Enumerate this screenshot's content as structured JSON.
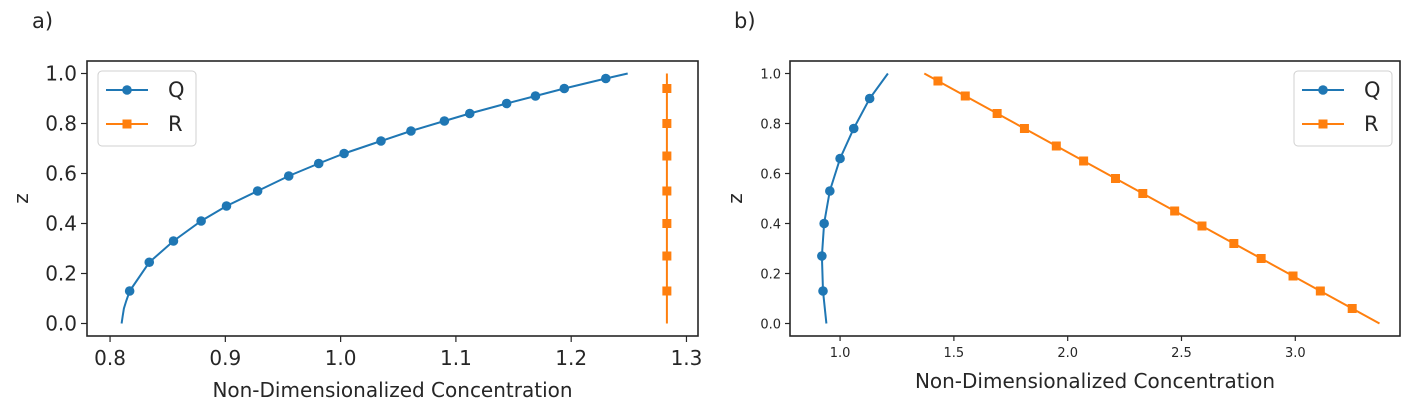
{
  "chart_data": [
    {
      "panel_label": "a)",
      "type": "line",
      "xlabel": "Non-Dimensionalized Concentration",
      "ylabel": "z",
      "xlim": [
        0.78,
        1.31
      ],
      "ylim": [
        -0.05,
        1.05
      ],
      "xticks": [
        0.8,
        0.9,
        1.0,
        1.1,
        1.2,
        1.3
      ],
      "xtick_labels": [
        "0.8",
        "0.9",
        "1.0",
        "1.1",
        "1.2",
        "1.3"
      ],
      "yticks": [
        0.0,
        0.2,
        0.4,
        0.6,
        0.8,
        1.0
      ],
      "ytick_labels": [
        "0.0",
        "0.2",
        "0.4",
        "0.6",
        "0.8",
        "1.0"
      ],
      "legend": "top-left",
      "series": [
        {
          "name": "Q",
          "color": "#1f77b4",
          "marker": "circle",
          "line": [
            {
              "x": 0.81,
              "y": 0.0
            },
            {
              "x": 0.811,
              "y": 0.03
            },
            {
              "x": 0.812,
              "y": 0.06
            },
            {
              "x": 0.814,
              "y": 0.09
            },
            {
              "x": 0.817,
              "y": 0.13
            },
            {
              "x": 0.834,
              "y": 0.245
            },
            {
              "x": 0.855,
              "y": 0.33
            },
            {
              "x": 0.879,
              "y": 0.41
            },
            {
              "x": 0.901,
              "y": 0.47
            },
            {
              "x": 0.928,
              "y": 0.53
            },
            {
              "x": 0.955,
              "y": 0.59
            },
            {
              "x": 0.981,
              "y": 0.64
            },
            {
              "x": 1.003,
              "y": 0.68
            },
            {
              "x": 1.035,
              "y": 0.73
            },
            {
              "x": 1.061,
              "y": 0.77
            },
            {
              "x": 1.09,
              "y": 0.81
            },
            {
              "x": 1.112,
              "y": 0.84
            },
            {
              "x": 1.144,
              "y": 0.88
            },
            {
              "x": 1.169,
              "y": 0.91
            },
            {
              "x": 1.194,
              "y": 0.94
            },
            {
              "x": 1.23,
              "y": 0.98
            },
            {
              "x": 1.249,
              "y": 1.0
            }
          ],
          "markers": [
            {
              "x": 0.817,
              "y": 0.13
            },
            {
              "x": 0.834,
              "y": 0.245
            },
            {
              "x": 0.855,
              "y": 0.33
            },
            {
              "x": 0.879,
              "y": 0.41
            },
            {
              "x": 0.901,
              "y": 0.47
            },
            {
              "x": 0.928,
              "y": 0.53
            },
            {
              "x": 0.955,
              "y": 0.59
            },
            {
              "x": 0.981,
              "y": 0.64
            },
            {
              "x": 1.003,
              "y": 0.68
            },
            {
              "x": 1.035,
              "y": 0.73
            },
            {
              "x": 1.061,
              "y": 0.77
            },
            {
              "x": 1.09,
              "y": 0.81
            },
            {
              "x": 1.112,
              "y": 0.84
            },
            {
              "x": 1.144,
              "y": 0.88
            },
            {
              "x": 1.169,
              "y": 0.91
            },
            {
              "x": 1.194,
              "y": 0.94
            },
            {
              "x": 1.23,
              "y": 0.98
            }
          ]
        },
        {
          "name": "R",
          "color": "#ff7f0e",
          "marker": "square",
          "line": [
            {
              "x": 1.283,
              "y": 0.0
            },
            {
              "x": 1.283,
              "y": 1.0
            }
          ],
          "markers": [
            {
              "x": 1.283,
              "y": 0.13
            },
            {
              "x": 1.283,
              "y": 0.27
            },
            {
              "x": 1.283,
              "y": 0.4
            },
            {
              "x": 1.283,
              "y": 0.53
            },
            {
              "x": 1.283,
              "y": 0.67
            },
            {
              "x": 1.283,
              "y": 0.8
            },
            {
              "x": 1.283,
              "y": 0.94
            }
          ]
        }
      ]
    },
    {
      "panel_label": "b)",
      "type": "line",
      "xlabel": "Non-Dimensionalized Concentration",
      "ylabel": "z",
      "xlim": [
        0.78,
        3.46
      ],
      "ylim": [
        -0.05,
        1.05
      ],
      "xticks": [
        1.0,
        1.5,
        2.0,
        2.5,
        3.0
      ],
      "xtick_labels": [
        "1.0",
        "1.5",
        "2.0",
        "2.5",
        "3.0"
      ],
      "yticks": [
        0.0,
        0.2,
        0.4,
        0.6,
        0.8,
        1.0
      ],
      "ytick_labels": [
        "0.0",
        "0.2",
        "0.4",
        "0.6",
        "0.8",
        "1.0"
      ],
      "legend": "top-right",
      "series": [
        {
          "name": "Q",
          "color": "#1f77b4",
          "marker": "circle",
          "line": [
            {
              "x": 0.94,
              "y": 0.0
            },
            {
              "x": 0.925,
              "y": 0.13
            },
            {
              "x": 0.92,
              "y": 0.27
            },
            {
              "x": 0.93,
              "y": 0.4
            },
            {
              "x": 0.955,
              "y": 0.53
            },
            {
              "x": 1.0,
              "y": 0.66
            },
            {
              "x": 1.06,
              "y": 0.78
            },
            {
              "x": 1.13,
              "y": 0.9
            },
            {
              "x": 1.21,
              "y": 1.0
            }
          ],
          "markers": [
            {
              "x": 0.925,
              "y": 0.13
            },
            {
              "x": 0.92,
              "y": 0.27
            },
            {
              "x": 0.93,
              "y": 0.4
            },
            {
              "x": 0.955,
              "y": 0.53
            },
            {
              "x": 1.0,
              "y": 0.66
            },
            {
              "x": 1.06,
              "y": 0.78
            },
            {
              "x": 1.13,
              "y": 0.9
            }
          ]
        },
        {
          "name": "R",
          "color": "#ff7f0e",
          "marker": "square",
          "line": [
            {
              "x": 1.37,
              "y": 1.0
            },
            {
              "x": 3.37,
              "y": 0.0
            }
          ],
          "markers": [
            {
              "x": 1.43,
              "y": 0.97
            },
            {
              "x": 1.55,
              "y": 0.91
            },
            {
              "x": 1.69,
              "y": 0.84
            },
            {
              "x": 1.81,
              "y": 0.78
            },
            {
              "x": 1.95,
              "y": 0.71
            },
            {
              "x": 2.07,
              "y": 0.65
            },
            {
              "x": 2.21,
              "y": 0.58
            },
            {
              "x": 2.33,
              "y": 0.52
            },
            {
              "x": 2.47,
              "y": 0.45
            },
            {
              "x": 2.59,
              "y": 0.39
            },
            {
              "x": 2.73,
              "y": 0.32
            },
            {
              "x": 2.85,
              "y": 0.26
            },
            {
              "x": 2.99,
              "y": 0.19
            },
            {
              "x": 3.11,
              "y": 0.13
            },
            {
              "x": 3.25,
              "y": 0.06
            }
          ]
        }
      ]
    }
  ]
}
